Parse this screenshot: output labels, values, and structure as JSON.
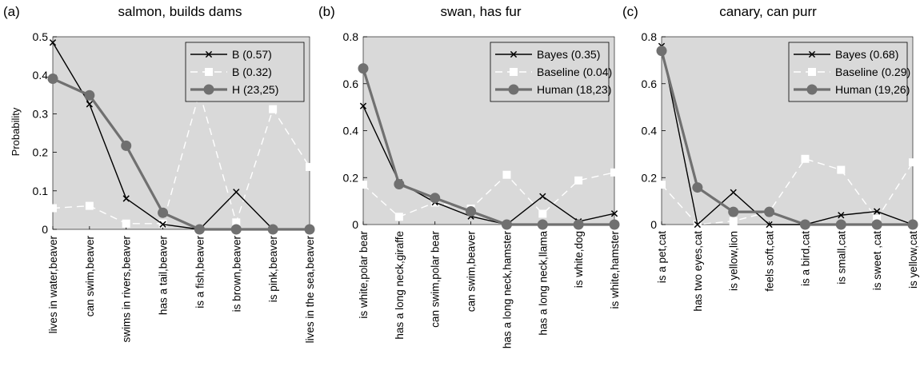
{
  "figure": {
    "ylabel": "Probability",
    "colors": {
      "plot_background": "#d9d9d9",
      "bayes": "#000000",
      "baseline": "#ffffff",
      "human": "#707070"
    }
  },
  "chart_data": [
    {
      "type": "line",
      "panel_label": "(a)",
      "title": "salmon, builds dams",
      "ylabel": "Probability",
      "ylim": [
        0,
        0.5
      ],
      "yticks": [
        0,
        0.1,
        0.2,
        0.3,
        0.4,
        0.5
      ],
      "ytick_labels": [
        "0",
        "0.1",
        "0.2",
        "0.3",
        "0.4",
        "0.5"
      ],
      "categories": [
        "lives in water,beaver",
        "can swim,beaver",
        "swims in rivers,beaver",
        "has a tail,beaver",
        "is a fish,beaver",
        "is brown,beaver",
        "is pink,beaver",
        "lives in the sea,beaver"
      ],
      "legend_position": "top-right",
      "series": [
        {
          "name": "B (0.57)",
          "style": "bayes",
          "values": [
            0.485,
            0.325,
            0.08,
            0.013,
            0.0,
            0.097,
            0.0,
            0.0
          ]
        },
        {
          "name": "B (0.32)",
          "style": "baseline",
          "values": [
            0.055,
            0.061,
            0.015,
            0.015,
            0.356,
            0.018,
            0.312,
            0.162
          ]
        },
        {
          "name": "H (23,25)",
          "style": "human",
          "values": [
            0.391,
            0.348,
            0.217,
            0.043,
            0.0,
            0.0,
            0.0,
            0.0
          ]
        }
      ]
    },
    {
      "type": "line",
      "panel_label": "(b)",
      "title": "swan, has fur",
      "ylabel": "",
      "ylim": [
        0,
        0.8
      ],
      "yticks": [
        0,
        0.2,
        0.4,
        0.6,
        0.8
      ],
      "ytick_labels": [
        "0",
        "0.2",
        "0.4",
        "0.6",
        "0.8"
      ],
      "categories": [
        "is white,polar bear",
        "has a long neck,giraffe",
        "can swim,polar bear",
        "can swim,beaver",
        "has a long neck,hamster",
        "has a long neck,llama",
        "is white,dog",
        "is white,hamster"
      ],
      "legend_position": "top-right",
      "series": [
        {
          "name": "Bayes (0.35)",
          "style": "bayes",
          "values": [
            0.505,
            0.18,
            0.095,
            0.035,
            0.0,
            0.12,
            0.013,
            0.047
          ]
        },
        {
          "name": "Baseline (0.04)",
          "style": "baseline",
          "values": [
            0.17,
            0.033,
            0.094,
            0.068,
            0.212,
            0.046,
            0.188,
            0.222
          ]
        },
        {
          "name": "Human (18,23)",
          "style": "human",
          "values": [
            0.665,
            0.172,
            0.113,
            0.056,
            0.0,
            0.0,
            0.0,
            0.0
          ]
        }
      ]
    },
    {
      "type": "line",
      "panel_label": "(c)",
      "title": "canary, can purr",
      "ylabel": "",
      "ylim": [
        0,
        0.8
      ],
      "yticks": [
        0,
        0.2,
        0.4,
        0.6,
        0.8
      ],
      "ytick_labels": [
        "0",
        "0.2",
        "0.4",
        "0.6",
        "0.8"
      ],
      "categories": [
        "is a pet,cat",
        "has two eyes,cat",
        "is yellow,lion",
        "feels soft,cat",
        "is a bird,cat",
        "is small,cat",
        "is sweet ,cat",
        "is yellow,cat"
      ],
      "legend_position": "top-right",
      "series": [
        {
          "name": "Bayes (0.68)",
          "style": "bayes",
          "values": [
            0.76,
            0.0,
            0.137,
            0.0,
            0.0,
            0.04,
            0.056,
            0.0
          ]
        },
        {
          "name": "Baseline (0.29)",
          "style": "baseline",
          "values": [
            0.17,
            0.0,
            0.015,
            0.054,
            0.28,
            0.233,
            0.024,
            0.265
          ]
        },
        {
          "name": "Human (19,26)",
          "style": "human",
          "values": [
            0.74,
            0.158,
            0.054,
            0.054,
            0.0,
            0.0,
            0.0,
            0.0
          ]
        }
      ]
    }
  ]
}
